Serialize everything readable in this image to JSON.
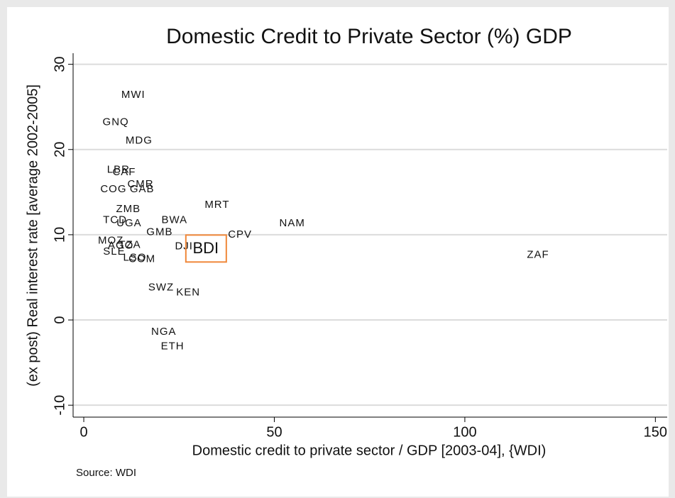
{
  "chart_data": {
    "type": "scatter",
    "title": "Domestic Credit to Private Sector (%) GDP",
    "x_label": "Domestic credit to private sector / GDP [2003-04], {WDI)",
    "y_label": "(ex post)  Real interest rate [average 2002-2005]",
    "note": "Source: WDI",
    "labels": [
      "MWI",
      "GNQ",
      "MDG",
      "LBR",
      "CAF",
      "CMR",
      "COG",
      "GAB",
      "ZMB",
      "MRT",
      "BWA",
      "TCD",
      "UGA",
      "NAM",
      "GMB",
      "CPV",
      "MOZ",
      "AGO",
      "TZA",
      "DJI",
      "BDI",
      "SLE",
      "LSO",
      "COM",
      "ZAF",
      "SWZ",
      "KEN",
      "NGA",
      "ETH"
    ],
    "x": [
      13.0,
      8.4,
      14.5,
      9.1,
      10.6,
      14.9,
      7.8,
      15.3,
      11.7,
      35.0,
      23.8,
      8.2,
      11.9,
      54.7,
      19.9,
      41.0,
      7.1,
      9.7,
      12.1,
      26.3,
      32.0,
      8.0,
      13.4,
      15.3,
      119.2,
      20.3,
      27.4,
      21.0,
      23.3
    ],
    "values": [
      26.4,
      23.2,
      21.0,
      17.6,
      17.3,
      15.9,
      15.3,
      15.3,
      13.0,
      13.5,
      11.7,
      11.7,
      11.3,
      11.3,
      10.3,
      10.0,
      9.3,
      8.7,
      8.8,
      8.6,
      8.3,
      8.0,
      7.3,
      7.1,
      7.6,
      3.8,
      3.2,
      -1.4,
      -3.1
    ],
    "highlight_index": 20,
    "highlight_color": "#f0883a",
    "xlim": [
      -2.8,
      153.1
    ],
    "ylim": [
      -11.4,
      31.3
    ],
    "xticks": [
      0,
      50,
      100,
      150
    ],
    "yticks": [
      -10,
      0,
      10,
      20,
      30
    ],
    "grid": true
  }
}
